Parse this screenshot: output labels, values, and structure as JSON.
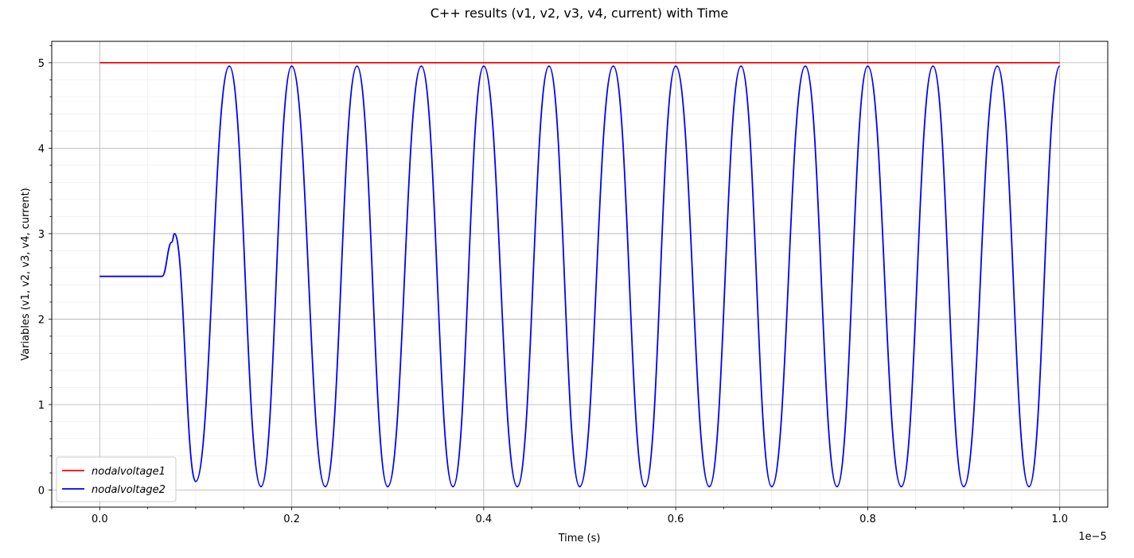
{
  "chart_data": {
    "type": "line",
    "title": "C++ results (v1, v2, v3, v4, current) with Time",
    "xlabel": "Time (s)",
    "ylabel": "Variables (v1, v2, v3, v4, current)",
    "x_offset_text": "1e−5",
    "xlim": [
      -0.05,
      1.05
    ],
    "ylim": [
      -0.2,
      5.25
    ],
    "x_ticks": [
      0.0,
      0.2,
      0.4,
      0.6,
      0.8,
      1.0
    ],
    "x_tick_labels": [
      "0.0",
      "0.2",
      "0.4",
      "0.6",
      "0.8",
      "1.0"
    ],
    "y_ticks": [
      0,
      1,
      2,
      3,
      4,
      5
    ],
    "y_tick_labels": [
      "0",
      "1",
      "2",
      "3",
      "4",
      "5"
    ],
    "grid": true,
    "minor_grid": true,
    "legend_position": "lower-left",
    "series": [
      {
        "name": "nodalvoltage1",
        "color": "#ff0000",
        "x": [
          0.0,
          1.0
        ],
        "y": [
          5.0,
          5.0
        ]
      },
      {
        "name": "nodalvoltage2",
        "color": "#0000ff",
        "x": [
          0.0,
          0.065,
          0.075,
          0.078,
          0.1,
          0.135,
          0.168,
          0.2,
          0.235,
          0.268,
          0.3,
          0.335,
          0.368,
          0.4,
          0.435,
          0.468,
          0.5,
          0.535,
          0.568,
          0.6,
          0.635,
          0.668,
          0.7,
          0.735,
          0.768,
          0.8,
          0.835,
          0.868,
          0.9,
          0.935,
          0.968,
          1.0
        ],
        "y": [
          2.5,
          2.5,
          2.9,
          3.0,
          0.1,
          4.96,
          0.04,
          4.96,
          0.04,
          4.96,
          0.04,
          4.96,
          0.04,
          4.96,
          0.04,
          4.96,
          0.04,
          4.96,
          0.04,
          4.96,
          0.04,
          4.96,
          0.04,
          4.96,
          0.04,
          4.96,
          0.04,
          4.96,
          0.04,
          4.96,
          0.04,
          4.96
        ]
      }
    ]
  }
}
